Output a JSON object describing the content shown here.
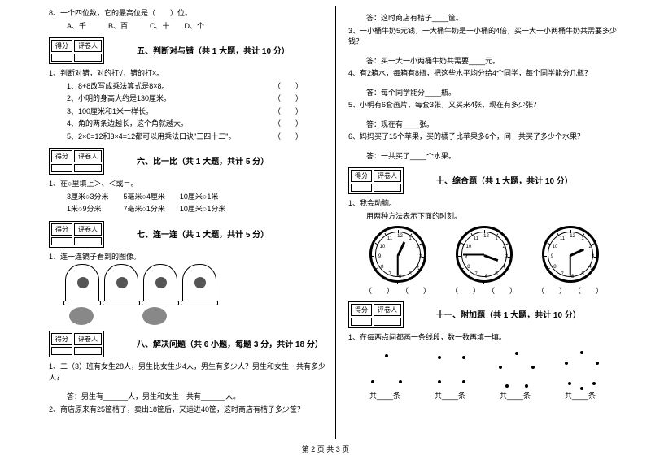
{
  "left": {
    "q8": "8、一个四位数，它的最高位是（　　）位。",
    "q8_opts": "A、千　　　B、百　　　C、十　　D、个",
    "box": {
      "a": "得分",
      "b": "评卷人"
    },
    "s5": {
      "title": "五、判断对与错（共 1 大题，共计 10 分）"
    },
    "s5_intro": "1、判断对错，对的打√，错的打×。",
    "s5_items": [
      "1、8+8改写成乘法算式是8×8。",
      "2、小明的身高大约是130厘米。",
      "3、100厘米和1米一样长。",
      "4、角的两条边越长，这个角就越大。",
      "5、2×6=12和3×4=12都可以用乘法口诀\"三四十二\"。"
    ],
    "s6": {
      "title": "六、比一比（共 1 大题，共计 5 分）"
    },
    "s6_intro": "1、在○里填上＞、＜或＝。",
    "s6_row1": "3厘米○3分米　　5毫米○4厘米　　10厘米○1米",
    "s6_row2": "1米○9分米　　　7毫米○1分米　　10厘米○1分米",
    "s7": {
      "title": "七、连一连（共 1 大题，共计 5 分）"
    },
    "s7_intro": "1、连一连镜子看到的图像。",
    "s8": {
      "title": "八、解决问题（共 6 小题，每题 3 分，共计 18 分）"
    },
    "s8_q1": "1、二（3）班有女生28人，男生比女生少4人，男生有多少人？男生和女生一共有多少人？",
    "s8_a1": "答：男生有______人，男生和女生一共有______人。",
    "s8_q2": "2、商店原来有25筐桔子，卖出18筐后，又运进40筐，这时商店有桔子多少筐？"
  },
  "right": {
    "a2": "答：这时商店有桔子____筐。",
    "q3": "3、一小桶牛奶5元钱，一大桶牛奶是一小桶的4倍，买一大一小两桶牛奶共需要多少钱？",
    "a3": "答：买一大一小两桶牛奶共需要____元。",
    "q4": "4、有2箱水，每箱有8瓶，把这些水平均分给4个同学，每个同学能分几瓶？",
    "a4": "答：每个同学能分____瓶。",
    "q5": "5、小明有6套画片，每套3张，又买来4张，现在有多少张？",
    "a5": "答：现在有____张。",
    "q6": "6、妈妈买了15个苹果，买的橘子比苹果多6个，问一共买了多少个水果？",
    "a6": "答：一共买了____个水果。",
    "box": {
      "a": "得分",
      "b": "评卷人"
    },
    "s10": {
      "title": "十、综合题（共 1 大题，共计 10 分）"
    },
    "s10_intro": "1、我会动脑。",
    "s10_sub": "用两种方法表示下面的时刻。",
    "clock_paren": "（　　）　　（　　）",
    "s11": {
      "title": "十一、附加题（共 1 大题，共计 10 分）"
    },
    "s11_intro": "1、在每两点间都画一条线段，数一数再填一填。",
    "dots_label": "共____条"
  },
  "footer": "第 2 页 共 3 页",
  "clocks": [
    {
      "hour_angle": -65,
      "minute_angle": 90
    },
    {
      "hour_angle": 20,
      "minute_angle": 180
    },
    {
      "hour_angle": -25,
      "minute_angle": 90
    }
  ],
  "dot_groups": [
    [
      [
        25,
        8
      ],
      [
        8,
        40
      ],
      [
        42,
        40
      ]
    ],
    [
      [
        10,
        10
      ],
      [
        40,
        10
      ],
      [
        10,
        40
      ],
      [
        40,
        40
      ]
    ],
    [
      [
        25,
        5
      ],
      [
        5,
        22
      ],
      [
        45,
        22
      ],
      [
        13,
        45
      ],
      [
        37,
        45
      ]
    ],
    [
      [
        25,
        4
      ],
      [
        6,
        17
      ],
      [
        44,
        17
      ],
      [
        10,
        42
      ],
      [
        40,
        42
      ],
      [
        25,
        48
      ]
    ]
  ],
  "colors": {
    "text": "#000000",
    "bg": "#ffffff"
  }
}
